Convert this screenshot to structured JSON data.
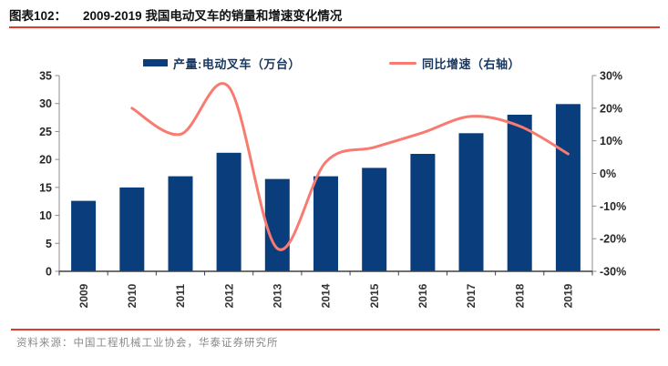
{
  "header": {
    "figure_label": "图表102：",
    "title": "2009-2019 我国电动叉车的销量和增速变化情况"
  },
  "footer": {
    "source": "资料来源：中国工程机械工业协会，华泰证券研究所"
  },
  "colors": {
    "bar": "#0A3D7C",
    "line": "#F87B72",
    "rule_red": "#E03A2F",
    "legend_text": "#17375E",
    "axis_line": "#8c8c8c",
    "bottom_axis_line": "#404040",
    "tick_label": "#262626",
    "source_text": "#8a8a8a"
  },
  "chart_data": {
    "type": "bar",
    "subtype": "bar+line combo, dual axis",
    "categories": [
      "2009",
      "2010",
      "2011",
      "2012",
      "2013",
      "2014",
      "2015",
      "2016",
      "2017",
      "2018",
      "2019"
    ],
    "series": [
      {
        "name": "产量:电动叉车（万台）",
        "type": "bar",
        "axis": "left",
        "color": "#0A3D7C",
        "values": [
          12.6,
          15.0,
          17.0,
          21.2,
          16.5,
          17.0,
          18.5,
          21.0,
          24.7,
          28.0,
          29.9
        ]
      },
      {
        "name": "同比增速（右轴）",
        "type": "line",
        "axis": "right",
        "color": "#F87B72",
        "values": [
          null,
          20.0,
          12.0,
          26.5,
          -23.0,
          3.5,
          8.0,
          12.5,
          17.5,
          14.5,
          6.0
        ]
      }
    ],
    "left_axis": {
      "min": 0,
      "max": 35,
      "step": 5
    },
    "right_axis": {
      "min": -30,
      "max": 30,
      "step": 10,
      "suffix": "%"
    },
    "legend_position": "top",
    "grid": false,
    "smooth_line": true
  }
}
